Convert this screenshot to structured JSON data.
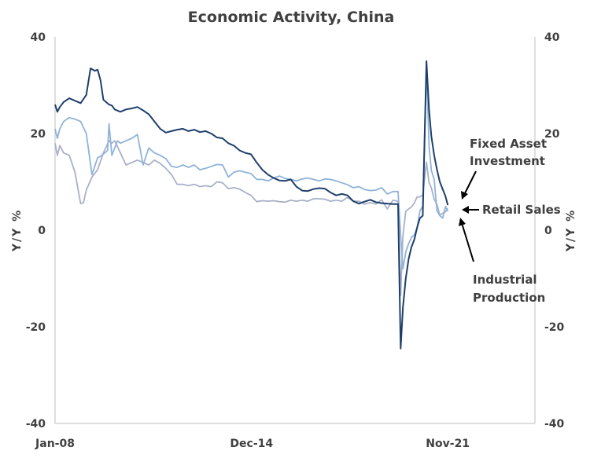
{
  "chart_data": {
    "type": "line",
    "title": "Economic Activity, China",
    "ylabel_left": "Y/Y %",
    "ylabel_right": "Y/Y %",
    "ylim": [
      -40,
      40
    ],
    "y_ticks": [
      "40",
      "20",
      "0",
      "-20",
      "-40"
    ],
    "x_ticks": [
      "Jan-08",
      "Dec-14",
      "Nov-21"
    ],
    "x_range": [
      2008.0,
      2024.9
    ],
    "x_tick_values": [
      2008.0,
      2014.92,
      2021.83
    ],
    "grid": false,
    "legend": "inline annotations with arrows",
    "annotations": {
      "fai_line1": "Fixed Asset",
      "fai_line2": "Investment",
      "retail": "Retail Sales",
      "ip_line1": "Industrial",
      "ip_line2": "Production"
    },
    "colors": {
      "fai": "#1f3f6b",
      "retail": "#8fb3d9",
      "ip": "#a9b1c8",
      "axis": "#bfbfbf",
      "text": "#404040"
    },
    "series": [
      {
        "key": "fai",
        "name": "Fixed Asset Investment",
        "x": [
          2008.0,
          2008.08,
          2008.17,
          2008.3,
          2008.5,
          2008.7,
          2008.9,
          2009.1,
          2009.25,
          2009.4,
          2009.5,
          2009.6,
          2009.7,
          2009.8,
          2009.9,
          2010.0,
          2010.1,
          2010.3,
          2010.5,
          2010.7,
          2010.9,
          2011.1,
          2011.3,
          2011.5,
          2011.7,
          2011.9,
          2012.1,
          2012.3,
          2012.5,
          2012.7,
          2012.9,
          2013.1,
          2013.3,
          2013.5,
          2013.7,
          2013.9,
          2014.1,
          2014.3,
          2014.5,
          2014.7,
          2014.9,
          2015.1,
          2015.3,
          2015.5,
          2015.7,
          2015.9,
          2016.1,
          2016.3,
          2016.5,
          2016.7,
          2016.9,
          2017.1,
          2017.3,
          2017.5,
          2017.7,
          2017.9,
          2018.1,
          2018.3,
          2018.5,
          2018.7,
          2018.9,
          2019.1,
          2019.3,
          2019.5,
          2019.7,
          2019.9,
          2020.08,
          2020.17,
          2020.25,
          2020.35,
          2020.45,
          2020.55,
          2020.65,
          2020.75,
          2020.85,
          2020.95,
          2021.08,
          2021.17,
          2021.25,
          2021.35,
          2021.45,
          2021.55,
          2021.65,
          2021.75,
          2021.83
        ],
        "values": [
          26.0,
          24.5,
          25.5,
          26.5,
          27.3,
          26.8,
          26.3,
          28.0,
          33.5,
          33.0,
          33.2,
          31.0,
          27.0,
          26.5,
          26.0,
          25.8,
          25.0,
          24.5,
          25.0,
          25.2,
          25.5,
          24.8,
          24.0,
          22.5,
          21.0,
          20.2,
          20.5,
          20.8,
          21.0,
          20.5,
          20.8,
          20.3,
          20.5,
          20.0,
          19.2,
          19.0,
          18.0,
          17.5,
          16.5,
          16.0,
          15.7,
          14.0,
          12.5,
          11.5,
          10.8,
          10.3,
          10.2,
          10.5,
          9.0,
          8.2,
          8.1,
          8.5,
          8.7,
          8.6,
          7.8,
          7.2,
          7.5,
          7.2,
          6.0,
          5.5,
          5.9,
          6.3,
          5.8,
          5.6,
          5.5,
          5.4,
          5.4,
          -24.5,
          -16.0,
          -10.0,
          -6.0,
          -3.5,
          -2.0,
          0.5,
          2.5,
          3.0,
          35.0,
          25.0,
          19.5,
          15.5,
          12.5,
          10.0,
          8.5,
          7.0,
          5.2
        ]
      },
      {
        "key": "retail",
        "name": "Retail Sales",
        "x": [
          2008.0,
          2008.08,
          2008.17,
          2008.3,
          2008.5,
          2008.7,
          2008.9,
          2009.1,
          2009.3,
          2009.5,
          2009.6,
          2009.75,
          2009.85,
          2009.9,
          2010.0,
          2010.1,
          2010.2,
          2010.3,
          2010.5,
          2010.7,
          2010.9,
          2011.1,
          2011.3,
          2011.5,
          2011.7,
          2011.9,
          2012.1,
          2012.3,
          2012.5,
          2012.7,
          2012.9,
          2013.1,
          2013.3,
          2013.5,
          2013.7,
          2013.9,
          2014.1,
          2014.3,
          2014.5,
          2014.7,
          2014.9,
          2015.1,
          2015.3,
          2015.5,
          2015.7,
          2015.9,
          2016.1,
          2016.3,
          2016.5,
          2016.7,
          2016.9,
          2017.1,
          2017.3,
          2017.5,
          2017.7,
          2017.9,
          2018.1,
          2018.3,
          2018.5,
          2018.7,
          2018.9,
          2019.1,
          2019.3,
          2019.5,
          2019.7,
          2019.9,
          2020.08,
          2020.17,
          2020.25,
          2020.35,
          2020.45,
          2020.55,
          2020.65,
          2020.75,
          2020.85,
          2020.95,
          2021.08,
          2021.17,
          2021.25,
          2021.35,
          2021.45,
          2021.55,
          2021.65,
          2021.75,
          2021.83
        ],
        "values": [
          21.0,
          19.0,
          21.0,
          22.5,
          23.3,
          23.0,
          22.5,
          20.0,
          11.5,
          15.0,
          15.3,
          16.0,
          16.5,
          22.0,
          15.5,
          17.0,
          18.5,
          18.0,
          18.5,
          19.0,
          19.8,
          13.5,
          17.0,
          16.0,
          15.5,
          14.8,
          13.2,
          13.0,
          13.5,
          13.0,
          13.5,
          12.5,
          12.8,
          13.2,
          13.6,
          13.5,
          11.0,
          12.0,
          12.3,
          12.0,
          11.7,
          10.5,
          10.5,
          10.2,
          10.8,
          11.2,
          10.7,
          10.5,
          10.2,
          10.6,
          10.8,
          10.5,
          10.2,
          10.6,
          10.5,
          10.2,
          9.8,
          9.4,
          8.8,
          9.0,
          8.4,
          8.2,
          8.3,
          8.8,
          7.5,
          8.0,
          8.0,
          -1.2,
          -8.0,
          -4.5,
          -2.8,
          -1.5,
          -1.0,
          0.5,
          4.0,
          5.0,
          34.0,
          17.5,
          12.4,
          10.5,
          4.0,
          3.0,
          2.5,
          4.9,
          3.9
        ]
      },
      {
        "key": "ip",
        "name": "Industrial Production",
        "x": [
          2008.0,
          2008.08,
          2008.17,
          2008.3,
          2008.5,
          2008.7,
          2008.9,
          2009.0,
          2009.1,
          2009.3,
          2009.5,
          2009.7,
          2009.9,
          2010.0,
          2010.1,
          2010.3,
          2010.5,
          2010.7,
          2010.9,
          2011.1,
          2011.3,
          2011.5,
          2011.7,
          2011.9,
          2012.1,
          2012.3,
          2012.5,
          2012.7,
          2012.9,
          2013.1,
          2013.3,
          2013.5,
          2013.7,
          2013.9,
          2014.1,
          2014.3,
          2014.5,
          2014.7,
          2014.9,
          2015.1,
          2015.3,
          2015.5,
          2015.7,
          2015.9,
          2016.1,
          2016.3,
          2016.5,
          2016.7,
          2016.9,
          2017.1,
          2017.3,
          2017.5,
          2017.7,
          2017.9,
          2018.1,
          2018.3,
          2018.5,
          2018.7,
          2018.9,
          2019.1,
          2019.3,
          2019.5,
          2019.7,
          2019.9,
          2020.08,
          2020.17,
          2020.25,
          2020.35,
          2020.45,
          2020.55,
          2020.65,
          2020.75,
          2020.85,
          2020.95,
          2021.08,
          2021.17,
          2021.25,
          2021.35,
          2021.45,
          2021.55,
          2021.65,
          2021.75,
          2021.83
        ],
        "values": [
          18.0,
          15.5,
          17.5,
          16.0,
          15.5,
          12.0,
          5.5,
          5.7,
          8.3,
          11.0,
          12.5,
          16.0,
          18.5,
          18.0,
          18.5,
          16.0,
          13.5,
          14.0,
          14.5,
          14.0,
          13.5,
          14.5,
          13.8,
          12.8,
          11.5,
          9.5,
          9.5,
          9.2,
          9.5,
          9.0,
          9.2,
          9.0,
          10.0,
          9.8,
          8.6,
          8.8,
          8.5,
          7.8,
          7.2,
          5.9,
          6.1,
          6.0,
          6.1,
          5.9,
          5.8,
          6.2,
          6.0,
          6.2,
          6.0,
          6.5,
          6.5,
          6.4,
          6.0,
          6.2,
          6.0,
          6.8,
          6.0,
          6.0,
          5.4,
          5.7,
          5.4,
          6.3,
          4.4,
          6.2,
          6.0,
          -13.5,
          -1.1,
          3.9,
          4.4,
          4.8,
          5.6,
          6.9,
          6.9,
          7.3,
          14.1,
          9.8,
          8.8,
          6.4,
          5.3,
          3.1,
          3.5,
          3.8,
          4.5
        ]
      }
    ]
  }
}
